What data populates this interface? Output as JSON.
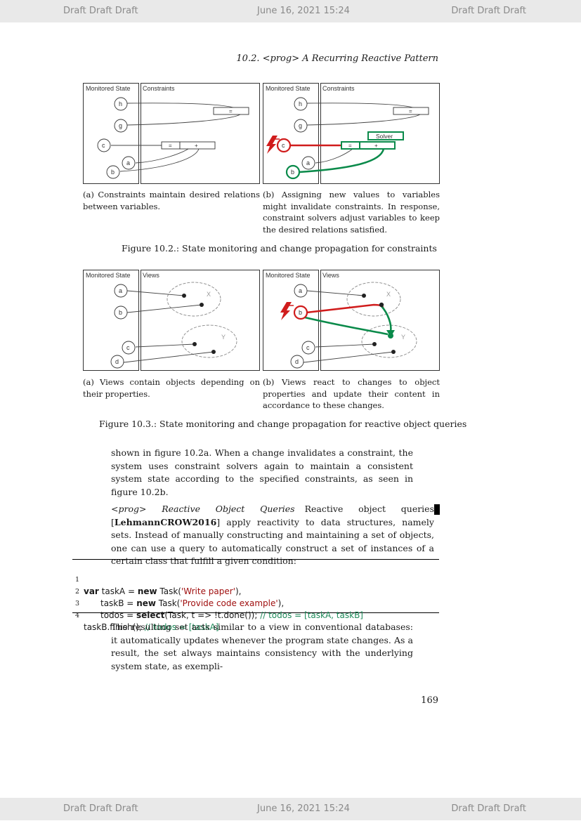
{
  "header_bar": {
    "left": "Draft Draft Draft",
    "center": "June 16, 2021 15:24",
    "right": "Draft Draft Draft"
  },
  "footer_bar": {
    "left": "Draft Draft Draft",
    "center": "June 16, 2021 15:24",
    "right": "Draft Draft Draft"
  },
  "running_head": "10.2.  <prog> A Recurring Reactive Pattern",
  "figure_10_2": {
    "panel_a": {
      "monitored_label": "Monitored State",
      "constraints_label": "Constraints",
      "nodes": [
        "h",
        "g",
        "c",
        "a",
        "b"
      ],
      "eq_label": "=",
      "plus_label": "+"
    },
    "panel_b": {
      "monitored_label": "Monitored State",
      "constraints_label": "Constraints",
      "nodes": [
        "h",
        "g",
        "c",
        "a",
        "b"
      ],
      "eq_label": "=",
      "plus_label": "+",
      "solver_label": "Solver"
    },
    "caption_a": "(a) Constraints maintain desired relations between variables.",
    "caption_b": "(b) Assigning new values to variables might invalidate constraints. In response, constraint solvers adjust variables to keep the desired relations satisfied.",
    "caption": "Figure 10.2.: State monitoring and change propagation for constraints"
  },
  "figure_10_3": {
    "panel_a": {
      "monitored_label": "Monitored State",
      "views_label": "Views",
      "nodes": [
        "a",
        "b",
        "c",
        "d"
      ],
      "view_x": "X",
      "view_y": "Y"
    },
    "panel_b": {
      "monitored_label": "Monitored State",
      "views_label": "Views",
      "nodes": [
        "a",
        "b",
        "c",
        "d"
      ],
      "view_x": "X",
      "view_y": "Y"
    },
    "caption_a": "(a) Views contain objects depending on their properties.",
    "caption_b": "(b) Views react to changes to object properties and update their content in accordance to these changes.",
    "caption": "Figure 10.3.: State monitoring and change propagation for reactive object queries"
  },
  "paragraph1": "shown in figure 10.2a. When a change invalidates a constraint, the system uses constraint solvers again to maintain a consistent system state according to the specified constraints, as seen in figure 10.2b.",
  "paragraph2": {
    "heading": "<prog> Reactive Object Queries",
    "text_before_cite": "Reactive object queries [",
    "cite": "LehmannCROW2016",
    "text_after_cite": "] apply reactivity to data structures, namely sets. Instead of manually constructing and maintaining a set of objects, one can use a query to automatically construct a set of instances of a certain class that fulfill a given condition:"
  },
  "code": {
    "line_numbers": [
      "1",
      "2",
      "3",
      "4"
    ],
    "line1": {
      "kw_var": "var",
      "a": " taskA = ",
      "kw_new": "new",
      "b": " Task(",
      "str": "'Write paper'",
      "c": "),"
    },
    "line2": {
      "a": "taskB = ",
      "kw_new": "new",
      "b": " Task(",
      "str": "'Provide code example'",
      "c": "),"
    },
    "line3": {
      "a": "todos = ",
      "kw_select": "select",
      "b": "(Task, t => !t.done()); ",
      "comment": "// todos = [taskA, taskB]"
    },
    "line4": {
      "a": "taskB.finish(); ",
      "comment": "// todos = [taskA]"
    }
  },
  "paragraph3": "The resulting set acts similar to a view in conventional databases: it automatically updates whenever the program state changes. As a result, the set always maintains consistency with the underlying system state, as exempli-",
  "page_number": "169",
  "colors": {
    "invalidate_red": "#d01c1c",
    "solver_green": "#0a8a4a",
    "bar_gray": "#e9e9e9",
    "comment_green": "#1f8a5a",
    "string_red": "#a01010"
  }
}
